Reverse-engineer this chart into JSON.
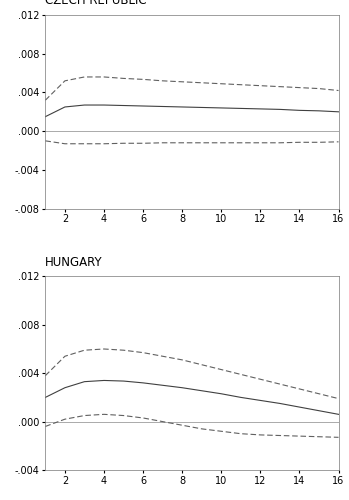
{
  "czech": {
    "title": "CZECH REPUBLIC",
    "x": [
      1,
      2,
      3,
      4,
      5,
      6,
      7,
      8,
      9,
      10,
      11,
      12,
      13,
      14,
      15,
      16
    ],
    "irf": [
      0.0015,
      0.0025,
      0.0027,
      0.0027,
      0.00265,
      0.0026,
      0.00255,
      0.0025,
      0.00245,
      0.0024,
      0.00235,
      0.0023,
      0.00225,
      0.00215,
      0.0021,
      0.002
    ],
    "upper": [
      0.0032,
      0.0052,
      0.0056,
      0.0056,
      0.00545,
      0.00535,
      0.0052,
      0.0051,
      0.005,
      0.0049,
      0.0048,
      0.0047,
      0.0046,
      0.0045,
      0.0044,
      0.0042
    ],
    "lower": [
      -0.001,
      -0.0013,
      -0.0013,
      -0.0013,
      -0.00125,
      -0.00125,
      -0.0012,
      -0.0012,
      -0.0012,
      -0.0012,
      -0.0012,
      -0.0012,
      -0.0012,
      -0.00115,
      -0.00115,
      -0.0011
    ],
    "ylim": [
      -0.008,
      0.012
    ],
    "yticks": [
      -0.008,
      -0.004,
      0.0,
      0.004,
      0.008,
      0.012
    ]
  },
  "hungary": {
    "title": "HUNGARY",
    "x": [
      1,
      2,
      3,
      4,
      5,
      6,
      7,
      8,
      9,
      10,
      11,
      12,
      13,
      14,
      15,
      16
    ],
    "irf": [
      0.002,
      0.0028,
      0.0033,
      0.0034,
      0.00335,
      0.0032,
      0.003,
      0.0028,
      0.00255,
      0.0023,
      0.002,
      0.00175,
      0.0015,
      0.0012,
      0.0009,
      0.0006
    ],
    "upper": [
      0.0038,
      0.0054,
      0.0059,
      0.006,
      0.0059,
      0.0057,
      0.0054,
      0.0051,
      0.0047,
      0.0043,
      0.0039,
      0.0035,
      0.0031,
      0.0027,
      0.0023,
      0.0019
    ],
    "lower": [
      -0.0004,
      0.0002,
      0.0005,
      0.0006,
      0.0005,
      0.0003,
      0.0,
      -0.0003,
      -0.0006,
      -0.0008,
      -0.001,
      -0.0011,
      -0.00115,
      -0.0012,
      -0.00125,
      -0.0013
    ],
    "ylim": [
      -0.004,
      0.012
    ],
    "yticks": [
      -0.004,
      0.0,
      0.004,
      0.008,
      0.012
    ]
  },
  "line_color": "#404040",
  "dash_color": "#606060",
  "bg_color": "#ffffff",
  "title_fontsize": 8.5,
  "tick_fontsize": 7,
  "linewidth_irf": 0.8,
  "linewidth_se": 0.8,
  "zero_line_color": "#888888",
  "zero_linewidth": 0.5
}
